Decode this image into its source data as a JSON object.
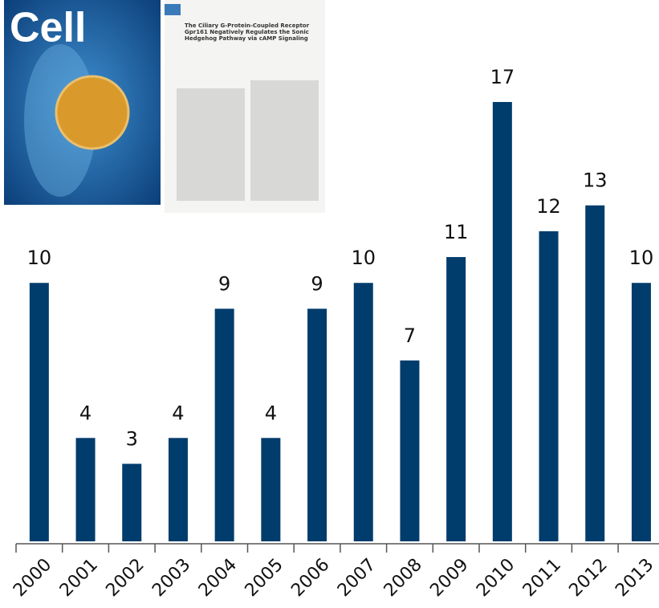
{
  "chart_data": {
    "type": "bar",
    "categories": [
      "2000",
      "2001",
      "2002",
      "2003",
      "2004",
      "2005",
      "2006",
      "2007",
      "2008",
      "2009",
      "2010",
      "2011",
      "2012",
      "2013"
    ],
    "values": [
      10,
      4,
      3,
      4,
      9,
      4,
      9,
      10,
      7,
      11,
      17,
      12,
      13,
      10
    ],
    "color": "#003c6c",
    "ylim": [
      0,
      17
    ],
    "grid": false
  },
  "images": {
    "cover_title": "Cell",
    "article_title": "The Ciliary G-Protein-Coupled Receptor Gpr161 Negatively Regulates the Sonic Hedgehog Pathway via cAMP Signaling"
  }
}
